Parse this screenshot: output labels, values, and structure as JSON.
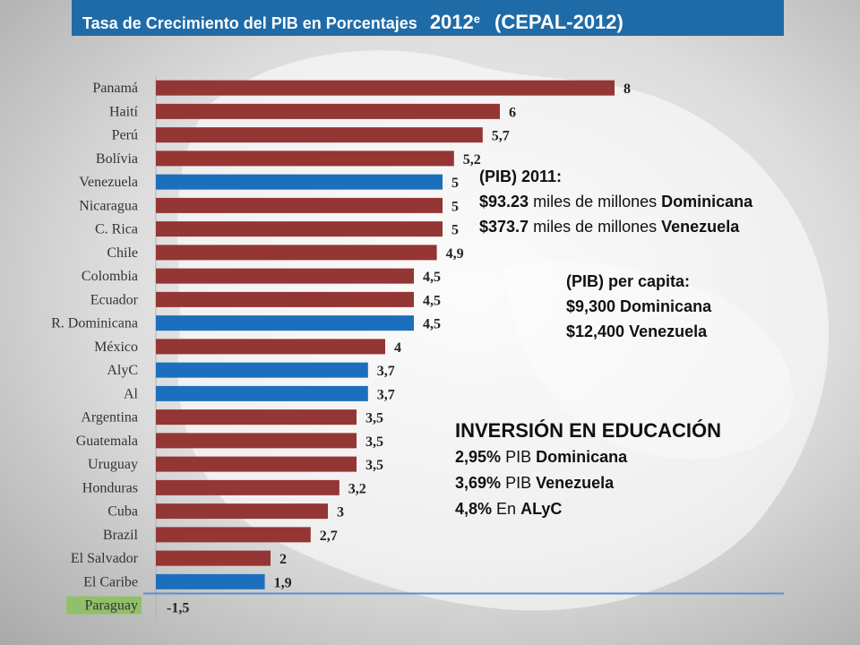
{
  "title": {
    "text": "Tasa de Crecimiento del PIB en Porcentajes",
    "year": "2012",
    "superscript": "e",
    "source": "(CEPAL-2012)"
  },
  "chart_data": {
    "type": "bar",
    "orientation": "horizontal",
    "categories": [
      "Panamá",
      "Haití",
      "Perú",
      "Bolívia",
      "Venezuela",
      "Nicaragua",
      "C. Rica",
      "Chile",
      "Colombia",
      "Ecuador",
      "R. Dominicana",
      "México",
      "AlyC",
      "Al",
      "Argentina",
      "Guatemala",
      "Uruguay",
      "Honduras",
      "Cuba",
      "Brazil",
      "El Salvador",
      "El Caribe",
      "Paraguay"
    ],
    "values": [
      8,
      6,
      5.7,
      5.2,
      5,
      5,
      5,
      4.9,
      4.5,
      4.5,
      4.5,
      4,
      3.7,
      3.7,
      3.5,
      3.5,
      3.5,
      3.2,
      3,
      2.7,
      2,
      1.9,
      -1.5
    ],
    "value_labels": [
      "8",
      "6",
      "5,7",
      "5,2",
      "5",
      "5",
      "5",
      "4,9",
      "4,5",
      "4,5",
      "4,5",
      "4",
      "3,7",
      "3,7",
      "3,5",
      "3,5",
      "3,5",
      "3,2",
      "3",
      "2,7",
      "2",
      "1,9",
      "-1,5"
    ],
    "highlighted": [
      "Venezuela",
      "R. Dominicana",
      "AlyC",
      "Al",
      "El Caribe"
    ],
    "negative_highlight": "Paraguay",
    "xlim": [
      0,
      8
    ],
    "grid": false,
    "colors": {
      "default_bar": "#943634",
      "highlight_bar": "#1c6fbd",
      "negative_label_bg": "#92c06a",
      "axis_line": "#5b8fd0"
    }
  },
  "notes": {
    "pib_2011": {
      "heading": "(PIB) 2011:",
      "lines": [
        {
          "amount": "$93.23",
          "text": "miles de millones",
          "country": "Dominicana"
        },
        {
          "amount": "$373.7",
          "text": "miles de millones",
          "country": "Venezuela"
        }
      ]
    },
    "per_capita": {
      "heading": "(PIB) per capita:",
      "lines": [
        "$9,300 Dominicana",
        "$12,400 Venezuela"
      ]
    },
    "education": {
      "heading": "INVERSIÓN EN EDUCACIÓN",
      "lines": [
        {
          "value": "2,95%",
          "text": "PIB",
          "country": "Dominicana"
        },
        {
          "value": "3,69%",
          "text": "PIB",
          "country": "Venezuela"
        },
        {
          "value": "4,8%",
          "text": "En",
          "country": "ALyC"
        }
      ]
    }
  }
}
